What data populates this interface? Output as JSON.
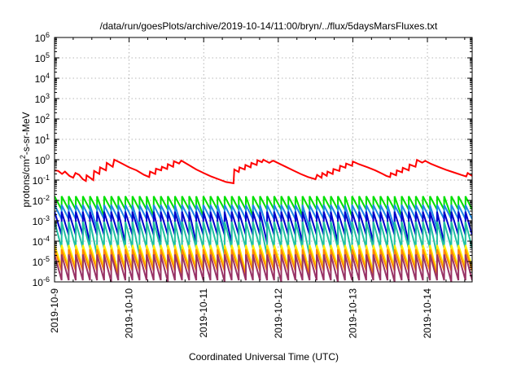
{
  "chart_data": {
    "type": "line",
    "title": "/data/run/goesPlots/archive/2019-10-14/11:00/bryn/../flux/5daysMarsFluxes.txt",
    "xlabel": "Coordinated Universal Time (UTC)",
    "ylabel": {
      "prefix": "protons/cm",
      "sup": "2",
      "suffix": "-s-sr-MeV"
    },
    "y_scale": "log",
    "ylim": [
      1e-06,
      1000000.0
    ],
    "y_ticks": [
      {
        "value": 1e-06,
        "base": "10",
        "exp": "-6"
      },
      {
        "value": 1e-05,
        "base": "10",
        "exp": "-5"
      },
      {
        "value": 0.0001,
        "base": "10",
        "exp": "-4"
      },
      {
        "value": 0.001,
        "base": "10",
        "exp": "-3"
      },
      {
        "value": 0.01,
        "base": "10",
        "exp": "-2"
      },
      {
        "value": 0.1,
        "base": "10",
        "exp": "-1"
      },
      {
        "value": 1.0,
        "base": "10",
        "exp": "0"
      },
      {
        "value": 10.0,
        "base": "10",
        "exp": "1"
      },
      {
        "value": 100.0,
        "base": "10",
        "exp": "2"
      },
      {
        "value": 1000.0,
        "base": "10",
        "exp": "3"
      },
      {
        "value": 10000.0,
        "base": "10",
        "exp": "4"
      },
      {
        "value": 100000.0,
        "base": "10",
        "exp": "5"
      },
      {
        "value": 1000000.0,
        "base": "10",
        "exp": "6"
      }
    ],
    "xlim_days": [
      0,
      5.6
    ],
    "x_ticks": [
      {
        "day": 0,
        "label": "2019-10-9"
      },
      {
        "day": 1,
        "label": "2019-10-10"
      },
      {
        "day": 2,
        "label": "2019-10-11"
      },
      {
        "day": 3,
        "label": "2019-10-12"
      },
      {
        "day": 4,
        "label": "2019-10-13"
      },
      {
        "day": 5,
        "label": "2019-10-14"
      }
    ],
    "grid": true,
    "series": [
      {
        "color": "#ff0000",
        "points": [
          [
            0,
            0.3
          ],
          [
            0.05,
            0.28
          ],
          [
            0.1,
            0.2
          ],
          [
            0.14,
            0.26
          ],
          [
            0.2,
            0.16
          ],
          [
            0.25,
            0.13
          ],
          [
            0.28,
            0.22
          ],
          [
            0.33,
            0.18
          ],
          [
            0.38,
            0.11
          ],
          [
            0.42,
            0.09
          ],
          [
            0.43,
            0.17
          ],
          [
            0.52,
            0.1
          ],
          [
            0.53,
            0.28
          ],
          [
            0.6,
            0.2
          ],
          [
            0.61,
            0.42
          ],
          [
            0.69,
            0.3
          ],
          [
            0.7,
            0.7
          ],
          [
            0.78,
            0.45
          ],
          [
            0.8,
            1.0
          ],
          [
            0.87,
            0.75
          ],
          [
            0.92,
            0.6
          ],
          [
            1.0,
            0.42
          ],
          [
            1.1,
            0.3
          ],
          [
            1.2,
            0.18
          ],
          [
            1.27,
            0.14
          ],
          [
            1.28,
            0.26
          ],
          [
            1.35,
            0.2
          ],
          [
            1.36,
            0.36
          ],
          [
            1.43,
            0.3
          ],
          [
            1.44,
            0.45
          ],
          [
            1.51,
            0.35
          ],
          [
            1.52,
            0.6
          ],
          [
            1.59,
            0.45
          ],
          [
            1.6,
            0.85
          ],
          [
            1.67,
            0.65
          ],
          [
            1.7,
            0.9
          ],
          [
            1.8,
            0.55
          ],
          [
            1.9,
            0.33
          ],
          [
            2.0,
            0.22
          ],
          [
            2.1,
            0.15
          ],
          [
            2.2,
            0.11
          ],
          [
            2.3,
            0.08
          ],
          [
            2.4,
            0.07
          ],
          [
            2.41,
            0.33
          ],
          [
            2.47,
            0.25
          ],
          [
            2.48,
            0.42
          ],
          [
            2.55,
            0.33
          ],
          [
            2.56,
            0.55
          ],
          [
            2.63,
            0.42
          ],
          [
            2.64,
            0.7
          ],
          [
            2.71,
            0.55
          ],
          [
            2.72,
            0.95
          ],
          [
            2.78,
            0.75
          ],
          [
            2.8,
            1.0
          ],
          [
            2.88,
            0.7
          ],
          [
            2.93,
            0.9
          ],
          [
            3.02,
            0.62
          ],
          [
            3.1,
            0.45
          ],
          [
            3.2,
            0.3
          ],
          [
            3.3,
            0.2
          ],
          [
            3.4,
            0.14
          ],
          [
            3.5,
            0.11
          ],
          [
            3.52,
            0.18
          ],
          [
            3.58,
            0.13
          ],
          [
            3.59,
            0.22
          ],
          [
            3.65,
            0.16
          ],
          [
            3.66,
            0.26
          ],
          [
            3.73,
            0.2
          ],
          [
            3.74,
            0.35
          ],
          [
            3.82,
            0.28
          ],
          [
            3.83,
            0.5
          ],
          [
            3.9,
            0.4
          ],
          [
            3.91,
            0.65
          ],
          [
            3.99,
            0.5
          ],
          [
            4.0,
            0.82
          ],
          [
            4.08,
            0.6
          ],
          [
            4.2,
            0.42
          ],
          [
            4.3,
            0.3
          ],
          [
            4.4,
            0.2
          ],
          [
            4.45,
            0.16
          ],
          [
            4.5,
            0.14
          ],
          [
            4.51,
            0.22
          ],
          [
            4.58,
            0.17
          ],
          [
            4.59,
            0.3
          ],
          [
            4.66,
            0.24
          ],
          [
            4.67,
            0.4
          ],
          [
            4.75,
            0.3
          ],
          [
            4.76,
            0.58
          ],
          [
            4.84,
            0.45
          ],
          [
            4.86,
            0.98
          ],
          [
            4.93,
            0.72
          ],
          [
            4.97,
            0.88
          ],
          [
            5.05,
            0.62
          ],
          [
            5.15,
            0.44
          ],
          [
            5.25,
            0.32
          ],
          [
            5.35,
            0.24
          ],
          [
            5.45,
            0.18
          ],
          [
            5.52,
            0.15
          ],
          [
            5.54,
            0.22
          ],
          [
            5.6,
            0.16
          ]
        ]
      },
      {
        "color": "#00e000",
        "sawtooth": {
          "start": 0,
          "end": 5.6,
          "period": 0.095,
          "low": 0.0035,
          "high": 0.016,
          "dip_every": 7,
          "dip_low": 0.0016
        }
      },
      {
        "color": "#1e88e5",
        "sawtooth": {
          "start": 0,
          "end": 5.6,
          "period": 0.095,
          "low": 0.0012,
          "high": 0.006,
          "dip_every": 6,
          "dip_low": 0.0004
        }
      },
      {
        "color": "#0000cc",
        "sawtooth": {
          "start": 0,
          "end": 5.6,
          "period": 0.095,
          "low": 0.0002,
          "high": 0.0028,
          "dip_every": 5,
          "dip_low": 8e-05
        }
      },
      {
        "color": "#20c0a0",
        "sawtooth": {
          "start": 0,
          "end": 5.6,
          "period": 0.095,
          "low": 4.5e-05,
          "high": 0.0009,
          "dip_every": 6,
          "dip_low": 2e-05
        }
      },
      {
        "color": "#ffee00",
        "sawtooth": {
          "start": 0,
          "end": 5.6,
          "period": 0.095,
          "low": 5.5e-06,
          "high": 6.5e-05,
          "dip_every": 9,
          "dip_low": 3e-06
        }
      },
      {
        "color": "#ff8800",
        "sawtooth": {
          "start": 0,
          "end": 5.6,
          "period": 0.095,
          "low": 3.5e-06,
          "high": 4e-05,
          "dip_every": 9,
          "dip_low": 2e-06
        }
      },
      {
        "color": "#993366",
        "sawtooth": {
          "start": 0,
          "end": 5.6,
          "period": 0.095,
          "low": 1.2e-06,
          "high": 2.2e-05,
          "dip_every": 8,
          "dip_low": 8e-07
        }
      }
    ]
  }
}
